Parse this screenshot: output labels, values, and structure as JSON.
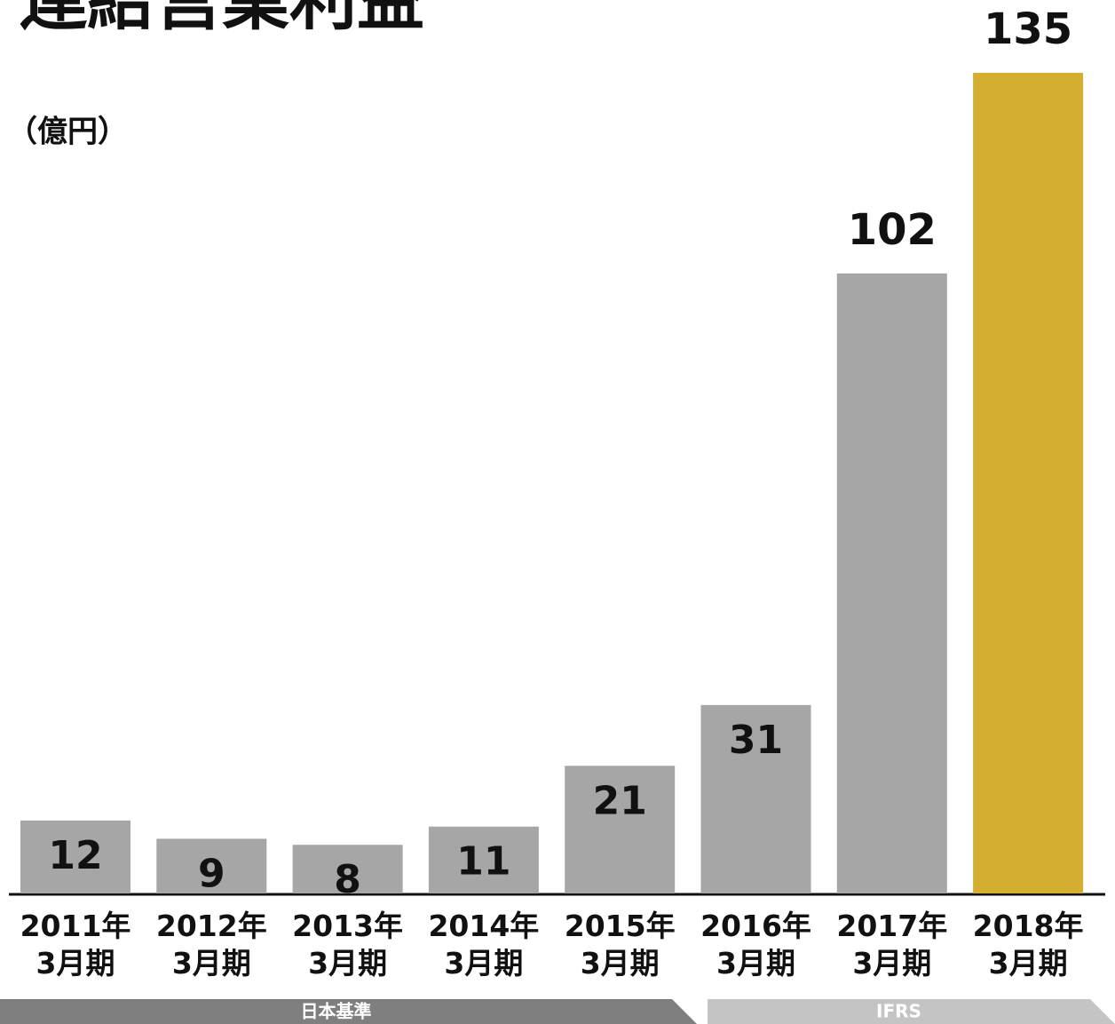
{
  "chart_data": {
    "type": "bar",
    "title": "連結営業利益",
    "unit_label": "（億円）",
    "categories": [
      "2011年\n3月期",
      "2012年\n3月期",
      "2013年\n3月期",
      "2014年\n3月期",
      "2015年\n3月期",
      "2016年\n3月期",
      "2017年\n3月期",
      "2018年\n3月期"
    ],
    "values": [
      12,
      9,
      8,
      11,
      21,
      31,
      102,
      135
    ],
    "colors": [
      "#a6a6a6",
      "#a6a6a6",
      "#a6a6a6",
      "#a6a6a6",
      "#a6a6a6",
      "#a6a6a6",
      "#a6a6a6",
      "#d3ae31"
    ],
    "periods": [
      {
        "label": "日本基準",
        "color": "#7f7f7f"
      },
      {
        "label": "IFRS",
        "color": "#c4c4c4"
      }
    ]
  }
}
